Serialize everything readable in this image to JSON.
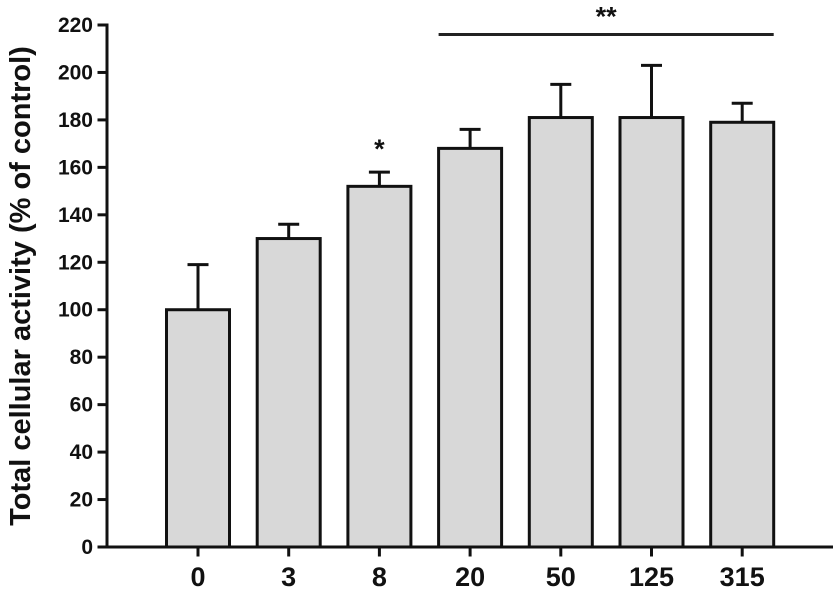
{
  "chart_data": {
    "type": "bar",
    "title": "",
    "ylabel": "Total cellular activity (% of control)",
    "xlabel": "",
    "categories": [
      "0",
      "3",
      "8",
      "20",
      "50",
      "125",
      "315"
    ],
    "values": [
      100,
      130,
      152,
      168,
      181,
      181,
      179
    ],
    "errors_plus": [
      19,
      6,
      6,
      8,
      14,
      22,
      8
    ],
    "ylim": [
      0,
      220
    ],
    "ytick_step": 20,
    "yticks": [
      0,
      20,
      40,
      60,
      80,
      100,
      120,
      140,
      160,
      180,
      200,
      220
    ],
    "grid": false,
    "legend": "none",
    "colors": {
      "bar_fill": "#d8d8d8",
      "bar_stroke": "#111111",
      "axis": "#111111",
      "sig_line": "#222222",
      "background": "#ffffff"
    },
    "annotations": {
      "single_star": {
        "label": "*",
        "category": "8"
      },
      "double_star": {
        "label": "**",
        "from_category": "20",
        "to_category": "315",
        "line_y_value": 216
      }
    }
  }
}
